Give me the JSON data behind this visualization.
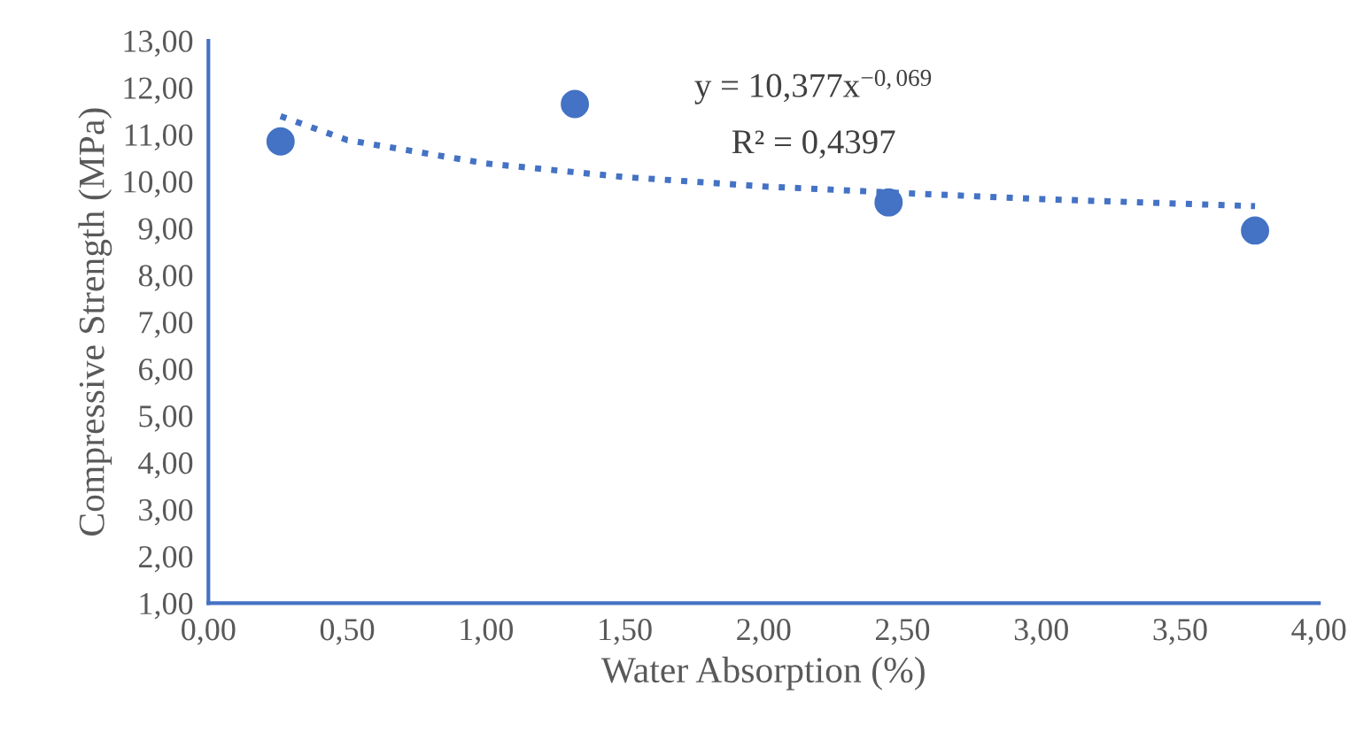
{
  "chart_data": {
    "type": "scatter",
    "xlabel": "Water Absorption (%)",
    "ylabel": "Compressive Strength (MPa)",
    "annotations": [
      "y = 10,377x$^{−0,069}$",
      "R² = 0,4397"
    ],
    "series": [
      {
        "color": "#4472c4",
        "marker": "circle",
        "x": [
          0.26,
          1.32,
          2.45,
          3.77
        ],
        "values": [
          10.85,
          11.65,
          9.55,
          8.95
        ]
      },
      {
        "type": "line",
        "color": "#4472c4",
        "line_style": "dotted",
        "marker": "none",
        "x": [
          0.26,
          0.5,
          1.0,
          1.5,
          2.0,
          2.5,
          3.0,
          3.77
        ],
        "values": [
          11.39,
          10.88,
          10.38,
          10.09,
          9.89,
          9.75,
          9.62,
          9.47
        ]
      }
    ],
    "xlim": [
      0,
      4
    ],
    "ylim": [
      1,
      13
    ],
    "xticks": [
      {
        "value": 0,
        "label": "0,00"
      },
      {
        "value": 0.5,
        "label": "0,50"
      },
      {
        "value": 1,
        "label": "1,00"
      },
      {
        "value": 1.5,
        "label": "1,50"
      },
      {
        "value": 2,
        "label": "2,00"
      },
      {
        "value": 2.5,
        "label": "2,50"
      },
      {
        "value": 3,
        "label": "3,00"
      },
      {
        "value": 3.5,
        "label": "3,50"
      },
      {
        "value": 4,
        "label": "4,00"
      }
    ],
    "yticks": [
      {
        "value": 1,
        "label": "1,00"
      },
      {
        "value": 2,
        "label": "2,00"
      },
      {
        "value": 3,
        "label": "3,00"
      },
      {
        "value": 4,
        "label": "4,00"
      },
      {
        "value": 5,
        "label": "5,00"
      },
      {
        "value": 6,
        "label": "6,00"
      },
      {
        "value": 7,
        "label": "7,00"
      },
      {
        "value": 8,
        "label": "8,00"
      },
      {
        "value": 9,
        "label": "9,00"
      },
      {
        "value": 10,
        "label": "10,00"
      },
      {
        "value": 11,
        "label": "11,00"
      },
      {
        "value": 12,
        "label": "12,00"
      },
      {
        "value": 13,
        "label": "13,00"
      }
    ],
    "grid": false,
    "legend": false
  }
}
